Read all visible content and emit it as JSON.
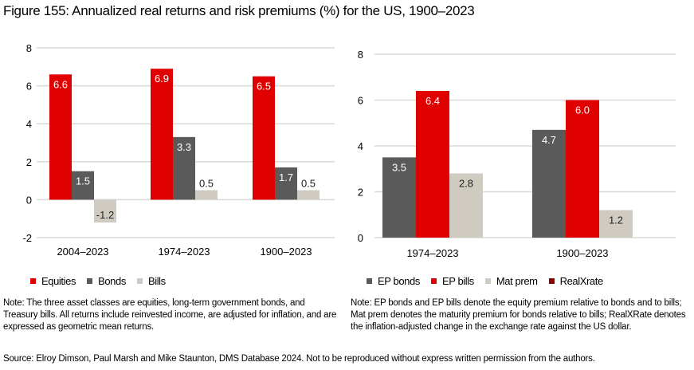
{
  "title": "Figure 155: Annualized real returns and risk premiums (%) for the US, 1900–2023",
  "chart_data": [
    {
      "type": "bar",
      "categories": [
        "2004–2023",
        "1974–2023",
        "1900–2023"
      ],
      "series": [
        {
          "name": "Equities",
          "color": "#e00000",
          "values": [
            6.6,
            6.9,
            6.5
          ]
        },
        {
          "name": "Bonds",
          "color": "#5a5a5a",
          "values": [
            1.5,
            3.3,
            1.7
          ]
        },
        {
          "name": "Bills",
          "color": "#cfcbc1",
          "values": [
            -1.2,
            0.5,
            0.5
          ]
        }
      ],
      "yticks": [
        -2,
        0,
        2,
        4,
        6,
        8
      ],
      "ylim": [
        -2,
        8
      ],
      "grid": true,
      "legend": "bottom"
    },
    {
      "type": "bar",
      "categories": [
        "1974–2023",
        "1900–2023"
      ],
      "series": [
        {
          "name": "EP bonds",
          "color": "#5a5a5a",
          "values": [
            3.5,
            4.7
          ]
        },
        {
          "name": "EP bills",
          "color": "#e00000",
          "values": [
            6.4,
            6.0
          ]
        },
        {
          "name": "Mat prem",
          "color": "#cfcbc1",
          "values": [
            2.8,
            1.2
          ]
        },
        {
          "name": "RealXrate",
          "color": "#8b0000",
          "values": [
            null,
            null
          ]
        }
      ],
      "yticks": [
        0,
        2,
        4,
        6,
        8
      ],
      "ylim": [
        0,
        8
      ],
      "grid": true,
      "legend": "bottom"
    }
  ],
  "notes": {
    "left": "Note: The three asset classes are equities, long-term government bonds, and Treasury bills. All returns include reinvested income, are adjusted for inflation, and are expressed as geometric mean returns.",
    "right": "Note: EP bonds and EP bills denote the equity premium relative to bonds and to bills; Mat prem denotes the maturity premium for bonds relative to bills; RealXRate denotes the inflation-adjusted change in the exchange rate against the US dollar."
  },
  "source": "Source: Elroy Dimson, Paul Marsh and Mike Staunton, DMS Database 2024. Not to be reproduced without express written permission from the authors."
}
